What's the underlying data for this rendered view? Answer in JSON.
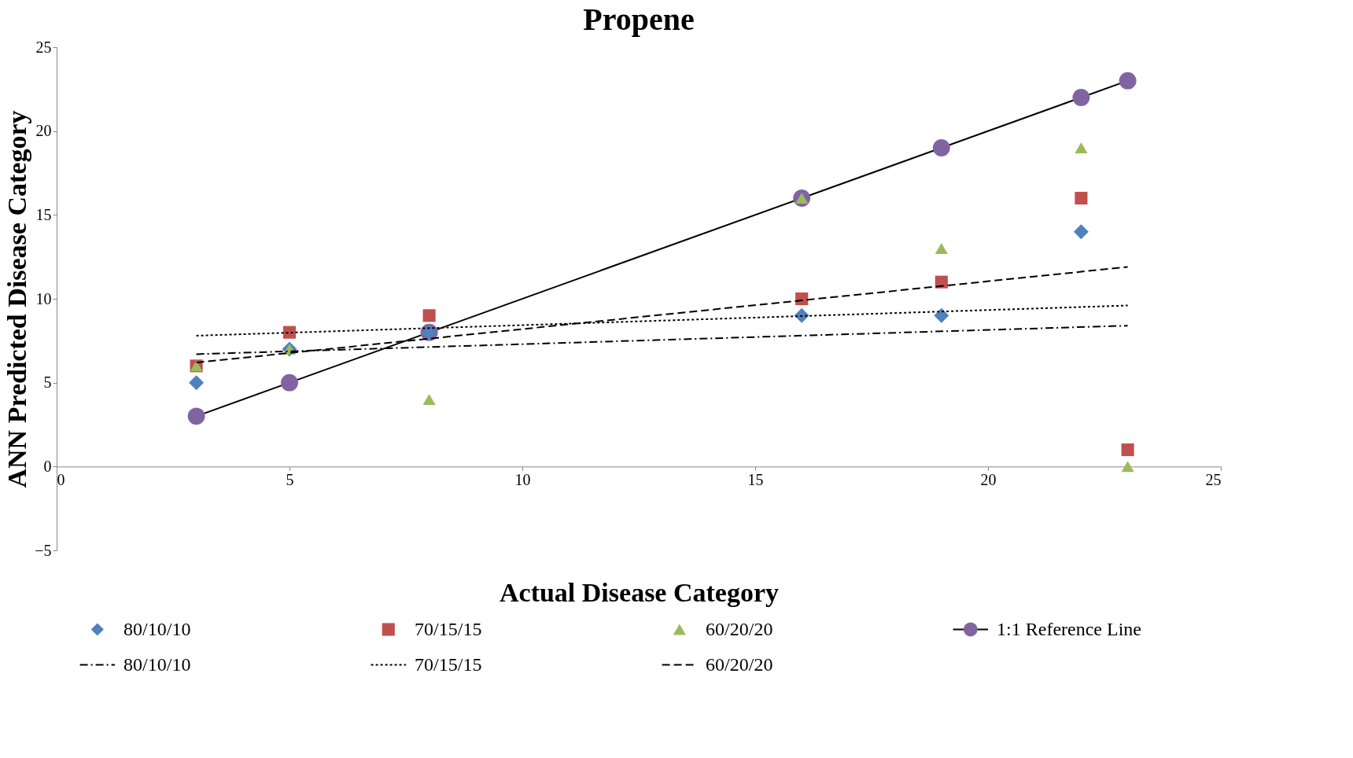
{
  "chart_data": {
    "type": "scatter",
    "title": "Propene",
    "xlabel": "Actual Disease Category",
    "ylabel": "ANN Predicted Disease Category",
    "xlim": [
      0,
      25
    ],
    "xticks": [
      0,
      5,
      10,
      15,
      20,
      25
    ],
    "ylim": [
      -5,
      25
    ],
    "yticks": [
      -5,
      0,
      5,
      10,
      15,
      20,
      25
    ],
    "grid": false,
    "legend": "bottom",
    "series": [
      {
        "name": "80/10/10",
        "type": "scatter",
        "marker": "diamond",
        "color": "#4f81bd",
        "x": [
          3,
          5,
          8,
          16,
          19,
          22
        ],
        "values": [
          5,
          7,
          8,
          9,
          9,
          14
        ]
      },
      {
        "name": "70/15/15",
        "type": "scatter",
        "marker": "square",
        "color": "#c0504d",
        "x": [
          3,
          5,
          8,
          16,
          19,
          22,
          23
        ],
        "values": [
          6,
          8,
          9,
          10,
          11,
          16,
          1
        ]
      },
      {
        "name": "60/20/20",
        "type": "scatter",
        "marker": "triangle",
        "color": "#9bbb59",
        "x": [
          3,
          5,
          8,
          16,
          19,
          22,
          23
        ],
        "values": [
          6,
          7,
          4,
          16,
          13,
          19,
          0
        ]
      },
      {
        "name": "1:1 Reference Line",
        "type": "line",
        "marker": "circle",
        "line_style": "solid",
        "color": "#8064a2",
        "x": [
          3,
          5,
          8,
          16,
          19,
          22,
          23
        ],
        "values": [
          3,
          5,
          8,
          16,
          19,
          22,
          23
        ]
      },
      {
        "name": "80/10/10",
        "type": "line",
        "marker": "none",
        "line_style": "dashdot",
        "color": "#000000",
        "x": [
          3,
          23
        ],
        "values": [
          6.7,
          8.4
        ]
      },
      {
        "name": "70/15/15",
        "type": "line",
        "marker": "none",
        "line_style": "dotted",
        "color": "#000000",
        "x": [
          3,
          23
        ],
        "values": [
          7.8,
          9.6
        ]
      },
      {
        "name": "60/20/20",
        "type": "line",
        "marker": "none",
        "line_style": "dashed",
        "color": "#000000",
        "x": [
          3,
          23
        ],
        "values": [
          6.2,
          11.9
        ]
      }
    ]
  }
}
